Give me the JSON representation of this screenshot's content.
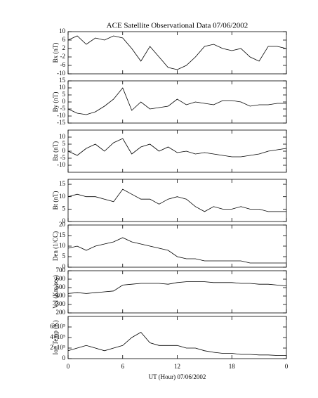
{
  "chart_data": [
    {
      "type": "line",
      "title": "ACE Satellite Observational Data   07/06/2002",
      "ylabel": "Bx (nT)",
      "color": "#000000",
      "x": [
        0,
        1,
        2,
        3,
        4,
        5,
        6,
        7,
        8,
        9,
        10,
        11,
        12,
        13,
        14,
        15,
        16,
        17,
        18,
        19,
        20,
        21,
        22,
        23,
        24
      ],
      "values": [
        6,
        8,
        4,
        7,
        6,
        8,
        7,
        2,
        -4,
        3,
        -2,
        -7,
        -8,
        -6,
        -2,
        3,
        4,
        2,
        1,
        2,
        -2,
        -4,
        3,
        3,
        2
      ],
      "xlim": [
        0,
        24
      ],
      "ylim": [
        -10,
        10
      ],
      "yticks": [
        -10,
        -6,
        -2,
        2,
        6,
        10
      ]
    },
    {
      "type": "line",
      "ylabel": "By (nT)",
      "color": "#000000",
      "x": [
        0,
        1,
        2,
        3,
        4,
        5,
        6,
        7,
        8,
        9,
        10,
        11,
        12,
        13,
        14,
        15,
        16,
        17,
        18,
        19,
        20,
        21,
        22,
        23,
        24
      ],
      "values": [
        -5,
        -8,
        -9,
        -7,
        -3,
        2,
        10,
        -6,
        0,
        -5,
        -4,
        -3,
        2,
        -2,
        0,
        -1,
        -2,
        1,
        1,
        0,
        -3,
        -2,
        -2,
        -1,
        -1
      ],
      "xlim": [
        0,
        24
      ],
      "ylim": [
        -15,
        15
      ],
      "yticks": [
        -15,
        -10,
        -5,
        0,
        5,
        10,
        15
      ]
    },
    {
      "type": "line",
      "ylabel": "Bz (nT)",
      "color": "#000000",
      "x": [
        0,
        1,
        2,
        3,
        4,
        5,
        6,
        7,
        8,
        9,
        10,
        11,
        12,
        13,
        14,
        15,
        16,
        17,
        18,
        19,
        20,
        21,
        22,
        23,
        24
      ],
      "values": [
        0,
        -3,
        2,
        5,
        0,
        6,
        9,
        -2,
        3,
        5,
        0,
        3,
        -1,
        0,
        -2,
        -1,
        -2,
        -3,
        -4,
        -4,
        -3,
        -2,
        0,
        1,
        2
      ],
      "xlim": [
        0,
        24
      ],
      "ylim": [
        -15,
        15
      ],
      "yticks": [
        -10,
        -5,
        0,
        5,
        10
      ]
    },
    {
      "type": "line",
      "ylabel": "Bt (nT)",
      "color": "#000000",
      "x": [
        0,
        1,
        2,
        3,
        4,
        5,
        6,
        7,
        8,
        9,
        10,
        11,
        12,
        13,
        14,
        15,
        16,
        17,
        18,
        19,
        20,
        21,
        22,
        23,
        24
      ],
      "values": [
        10,
        11,
        10,
        10,
        9,
        8,
        13,
        11,
        9,
        9,
        7,
        9,
        10,
        9,
        6,
        4,
        6,
        5,
        5,
        6,
        5,
        5,
        4,
        4,
        4
      ],
      "xlim": [
        0,
        24
      ],
      "ylim": [
        0,
        17
      ],
      "yticks": [
        0,
        5,
        10,
        15
      ]
    },
    {
      "type": "line",
      "ylabel": "Den (1/CC)",
      "color": "#000000",
      "x": [
        0,
        1,
        2,
        3,
        4,
        5,
        6,
        7,
        8,
        9,
        10,
        11,
        12,
        13,
        14,
        15,
        16,
        17,
        18,
        19,
        20,
        21,
        22,
        23,
        24
      ],
      "values": [
        9,
        10,
        8,
        10,
        11,
        12,
        14,
        12,
        11,
        10,
        9,
        8,
        5,
        4,
        4,
        3,
        3,
        3,
        3,
        3,
        2,
        2,
        2,
        2,
        2
      ],
      "xlim": [
        0,
        24
      ],
      "ylim": [
        0,
        20
      ],
      "yticks": [
        0,
        5,
        10,
        15,
        20
      ]
    },
    {
      "type": "line",
      "ylabel": "Vel (Km/sec)",
      "color": "#000000",
      "x": [
        0,
        1,
        2,
        3,
        4,
        5,
        6,
        7,
        8,
        9,
        10,
        11,
        12,
        13,
        14,
        15,
        16,
        17,
        18,
        19,
        20,
        21,
        22,
        23,
        24
      ],
      "values": [
        430,
        440,
        430,
        440,
        450,
        460,
        530,
        540,
        550,
        550,
        550,
        540,
        560,
        570,
        570,
        570,
        560,
        560,
        560,
        550,
        550,
        540,
        540,
        530,
        520
      ],
      "xlim": [
        0,
        24
      ],
      "ylim": [
        200,
        700
      ],
      "yticks": [
        200,
        300,
        400,
        500,
        600,
        700
      ]
    },
    {
      "type": "line",
      "ylabel": "Ion Temp (K)",
      "xlabel": "UT (Hour)  07/06/2002",
      "color": "#000000",
      "x": [
        0,
        1,
        2,
        3,
        4,
        5,
        6,
        7,
        8,
        9,
        10,
        11,
        12,
        13,
        14,
        15,
        16,
        17,
        18,
        19,
        20,
        21,
        22,
        23,
        24
      ],
      "values": [
        150000,
        200000,
        250000,
        200000,
        150000,
        200000,
        250000,
        400000,
        500000,
        300000,
        250000,
        250000,
        250000,
        200000,
        200000,
        150000,
        120000,
        100000,
        100000,
        80000,
        80000,
        70000,
        70000,
        60000,
        60000
      ],
      "xlim": [
        0,
        24
      ],
      "ylim": [
        0,
        800000
      ],
      "yticks": [
        0,
        {
          "value": 200000,
          "label": "2×10⁵"
        },
        {
          "value": 400000,
          "label": "4×10⁵"
        },
        {
          "value": 600000,
          "label": "6×10⁵"
        }
      ],
      "xticks": [
        0,
        6,
        12,
        18,
        {
          "value": 24,
          "label": "0"
        }
      ]
    }
  ]
}
